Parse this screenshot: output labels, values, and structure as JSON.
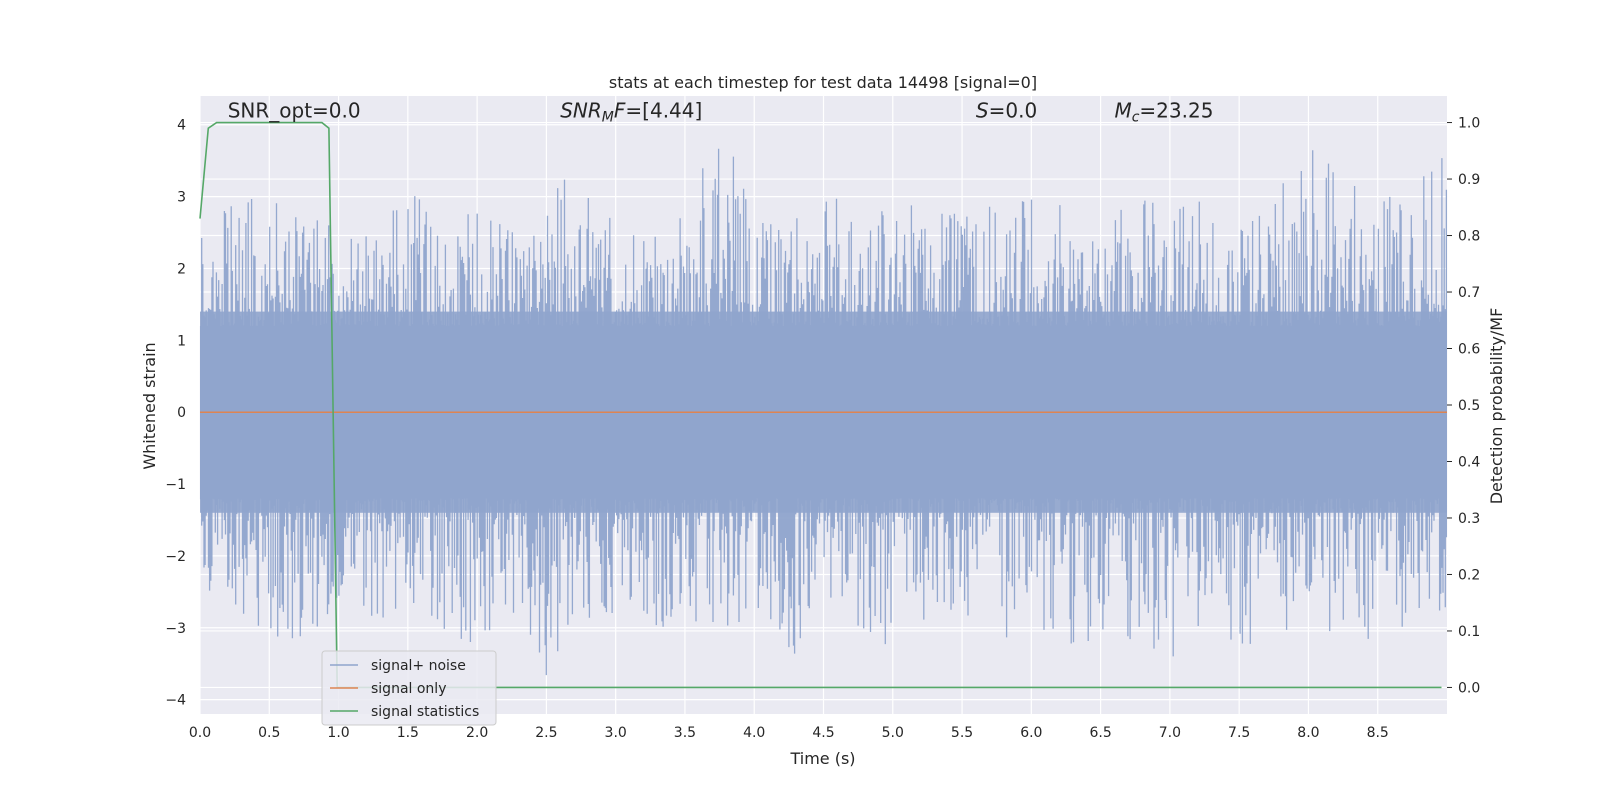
{
  "chart_data": {
    "type": "line",
    "title": "stats at each timestep for test data 14498 [signal=0]",
    "xlabel": "Time (s)",
    "ylabel": "Whitened strain",
    "y2label": "Detection probability/MF",
    "xlim": [
      0.0,
      9.0
    ],
    "ylim": [
      -4.2,
      4.4
    ],
    "y2lim": [
      -0.047,
      1.047
    ],
    "xticks": [
      "0.0",
      "0.5",
      "1.0",
      "1.5",
      "2.0",
      "2.5",
      "3.0",
      "3.5",
      "4.0",
      "4.5",
      "5.0",
      "5.5",
      "6.0",
      "6.5",
      "7.0",
      "7.5",
      "8.0",
      "8.5"
    ],
    "yticks": [
      "4",
      "3",
      "2",
      "1",
      "0",
      "−1",
      "−2",
      "−3",
      "−4"
    ],
    "y2ticks": [
      "1.0",
      "0.9",
      "0.8",
      "0.7",
      "0.6",
      "0.5",
      "0.4",
      "0.3",
      "0.2",
      "0.1",
      "0.0"
    ],
    "grid": true,
    "legend_position": "lower-left",
    "annotations": [
      {
        "id": "snr-opt",
        "text": "SNR_opt=0.0",
        "x": 0.2,
        "y": 4.1
      },
      {
        "id": "snr-mf",
        "text": "SNR_MF=[4.44]",
        "x": 2.6,
        "y": 4.1
      },
      {
        "id": "s-value",
        "text": "S=0.0",
        "x": 5.6,
        "y": 4.1
      },
      {
        "id": "chirp-mass",
        "text": "M_c=23.25",
        "x": 6.6,
        "y": 4.1
      }
    ],
    "series": [
      {
        "name": "signal+ noise",
        "color": "#8fa4cc",
        "axis": "left",
        "description": "noise envelope",
        "envelope_x": [
          0.0,
          0.25,
          0.5,
          0.75,
          1.0,
          1.25,
          1.5,
          1.75,
          2.0,
          2.25,
          2.5,
          2.75,
          3.0,
          3.25,
          3.5,
          3.75,
          4.0,
          4.25,
          4.5,
          4.75,
          5.0,
          5.25,
          5.5,
          5.75,
          6.0,
          6.25,
          6.5,
          6.75,
          7.0,
          7.25,
          7.5,
          7.75,
          8.0,
          8.25,
          8.5,
          8.75,
          9.0
        ],
        "envelope_upper": [
          2.6,
          2.9,
          3.2,
          2.7,
          2.8,
          2.6,
          3.0,
          3.3,
          2.8,
          2.7,
          3.2,
          3.3,
          2.9,
          2.6,
          3.0,
          4.0,
          3.0,
          2.8,
          3.2,
          2.7,
          3.0,
          2.8,
          2.9,
          3.0,
          3.1,
          2.9,
          3.0,
          3.1,
          3.2,
          2.9,
          3.0,
          3.1,
          3.7,
          3.3,
          3.2,
          3.3,
          3.8
        ],
        "envelope_lower": [
          -2.4,
          -2.8,
          -3.1,
          -3.2,
          -2.8,
          -3.0,
          -2.7,
          -3.1,
          -3.3,
          -2.9,
          -3.7,
          -3.0,
          -2.8,
          -3.0,
          -3.2,
          -3.0,
          -2.9,
          -3.5,
          -2.9,
          -3.0,
          -3.5,
          -3.0,
          -2.8,
          -3.2,
          -3.0,
          -3.2,
          -3.6,
          -3.1,
          -3.6,
          -3.0,
          -3.4,
          -3.1,
          -3.0,
          -3.2,
          -3.6,
          -3.3,
          -3.0
        ]
      },
      {
        "name": "signal only",
        "color": "#dd8452",
        "axis": "left",
        "x": [
          0.0,
          9.0
        ],
        "y": [
          0.0,
          0.0
        ]
      },
      {
        "name": "signal statistics",
        "color": "#55a868",
        "axis": "right",
        "x": [
          0.0,
          0.06,
          0.12,
          0.3,
          0.6,
          0.88,
          0.93,
          0.99,
          9.0
        ],
        "y": [
          0.83,
          0.99,
          1.0,
          1.0,
          1.0,
          1.0,
          0.99,
          0.0,
          0.0
        ]
      }
    ]
  }
}
